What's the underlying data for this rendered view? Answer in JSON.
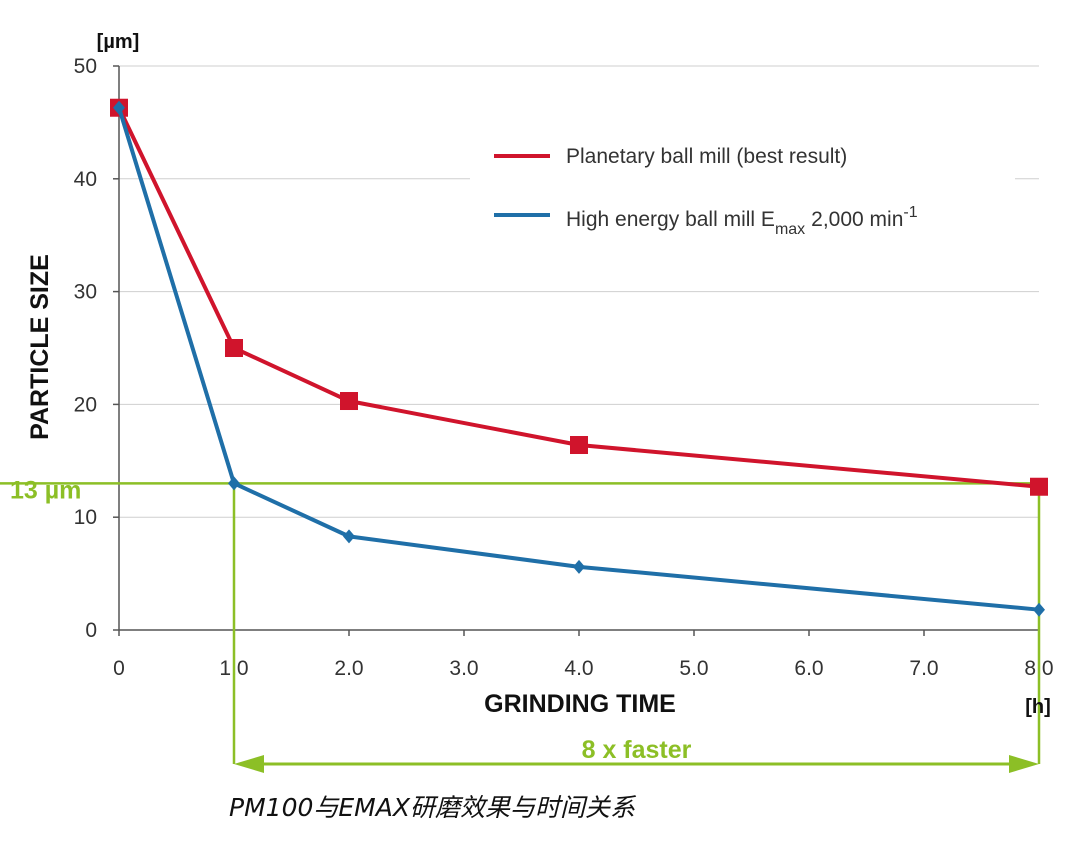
{
  "chart_data": {
    "type": "line",
    "x": [
      0,
      1.0,
      2.0,
      4.0,
      8.0
    ],
    "x_ticks": [
      "0",
      "1.0",
      "2.0",
      "3.0",
      "4.0",
      "5.0",
      "6.0",
      "7.0",
      "8.0"
    ],
    "y_ticks": [
      "0",
      "10",
      "20",
      "30",
      "40",
      "50"
    ],
    "xlim": [
      0,
      8
    ],
    "ylim": [
      0,
      50
    ],
    "xlabel": "GRINDING TIME",
    "ylabel": "PARTICLE SIZE",
    "x_unit": "[h]",
    "y_unit": "[µm]",
    "grid": "horizontal",
    "legend_position": "top-right",
    "series": [
      {
        "name": "Planetary ball mill (best result)",
        "values": [
          46.3,
          25.0,
          20.3,
          16.4,
          12.7
        ],
        "color": "#d0142c",
        "marker": "square"
      },
      {
        "name": "High energy ball mill",
        "name_sub": "max",
        "name_prefix": "High energy ball mill E",
        "name_suffix": "2,000 min",
        "name_sup": "-1",
        "values": [
          46.3,
          13.0,
          8.3,
          5.6,
          1.8
        ],
        "color": "#1f6fa8",
        "marker": "diamond"
      }
    ],
    "annotations": {
      "level_label": "13 µm",
      "level_value": 13,
      "span_from": 1.0,
      "span_to": 8.0,
      "span_label": "8 x faster",
      "color": "#8cbf26"
    },
    "caption": "PM100与EMAX研磨效果与时间关系"
  }
}
